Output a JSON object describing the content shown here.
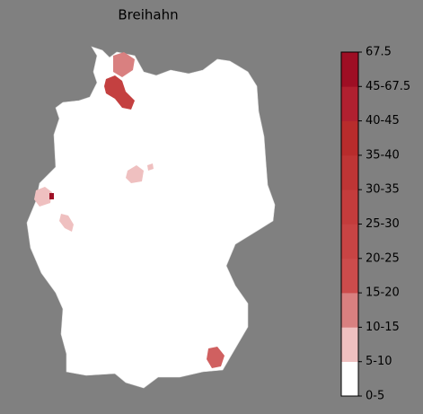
{
  "title": "Breihahn",
  "legend": {
    "labels": [
      "0-5",
      "5-10",
      "10-15",
      "15-20",
      "20-25",
      "25-30",
      "30-35",
      "35-40",
      "40-45",
      "45-67.5",
      "67.5"
    ],
    "colors": [
      "#ffffff",
      "#efc0c0",
      "#d98080",
      "#cc4c4c",
      "#c84444",
      "#c43c3c",
      "#be3535",
      "#b82c2c",
      "#b02030",
      "#9e0e24"
    ]
  }
}
